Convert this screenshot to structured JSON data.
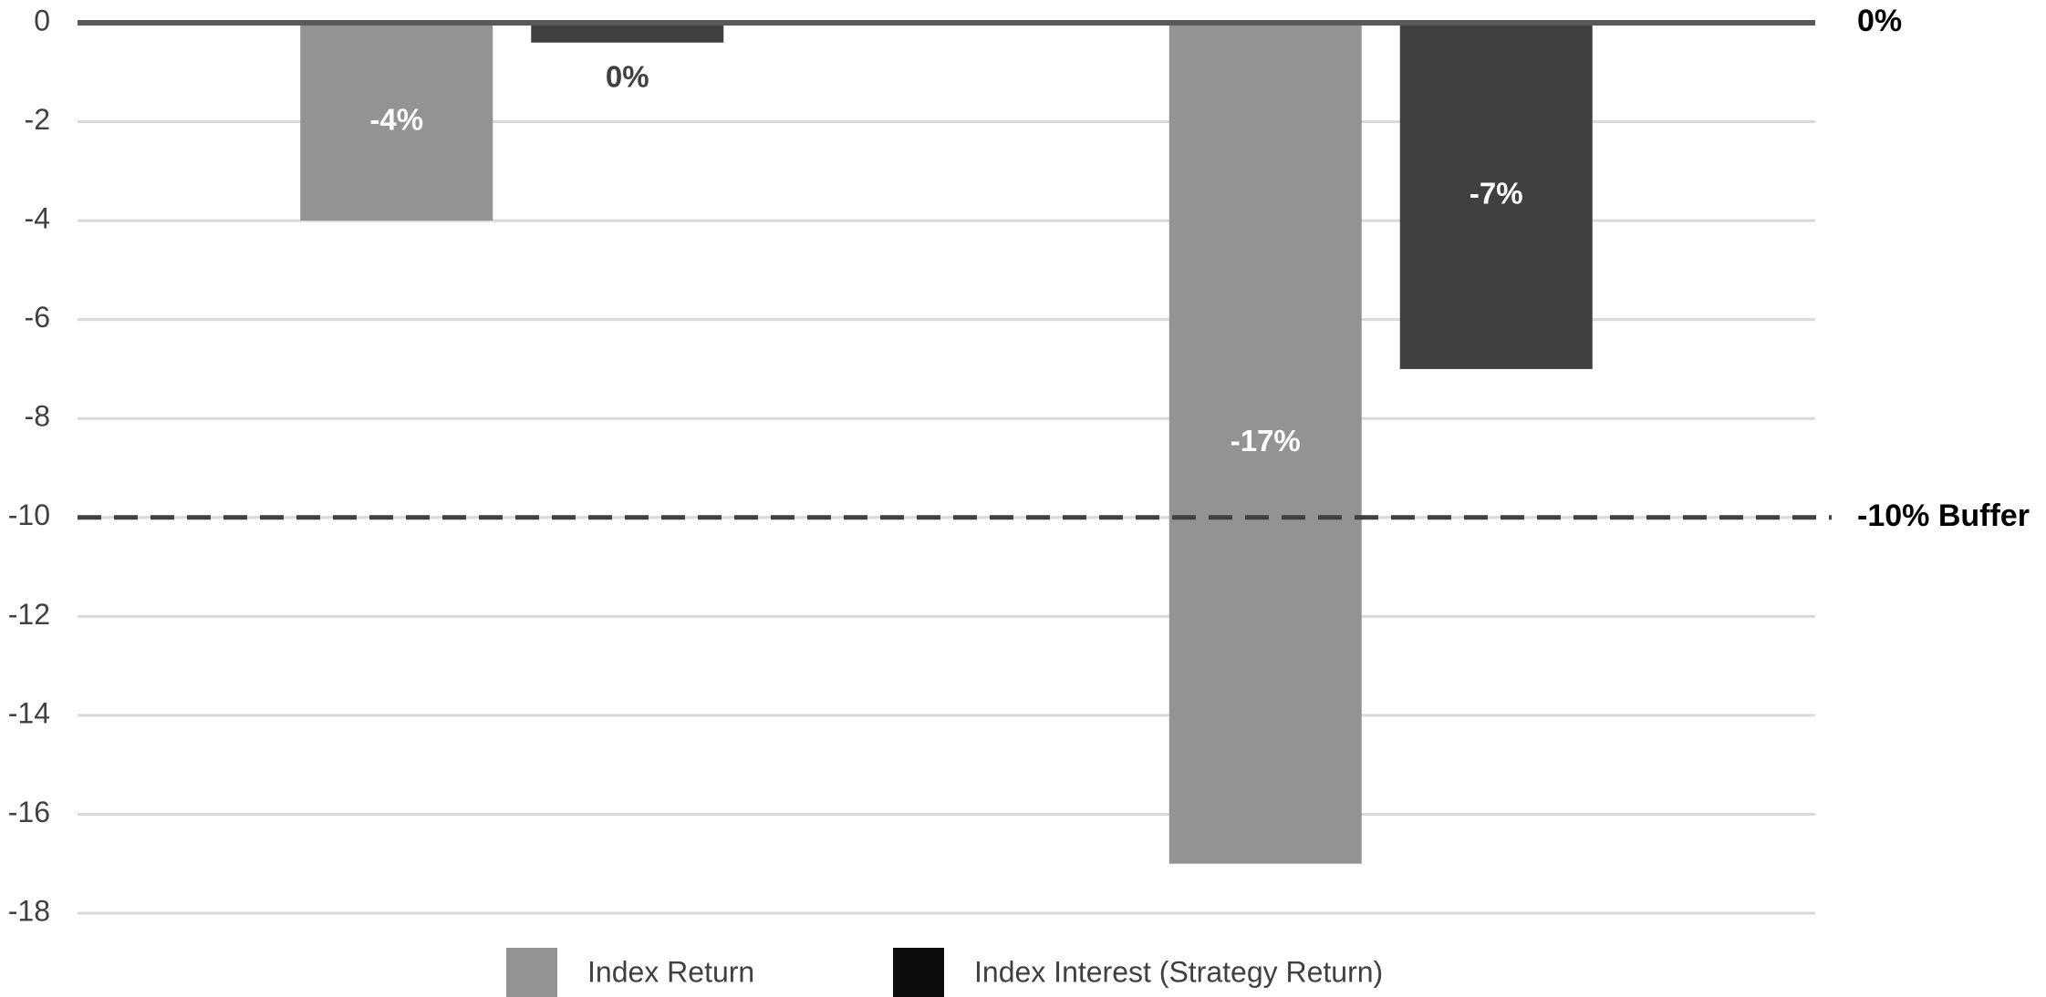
{
  "chart_data": {
    "type": "bar",
    "categories": [
      null,
      null
    ],
    "series": [
      {
        "name": "Index Return",
        "color": "#939393",
        "values": [
          -4,
          -17
        ],
        "value_labels": [
          "-4%",
          "-17%"
        ]
      },
      {
        "name": "Index Interest (Strategy Return)",
        "color": "#404040",
        "legend_color": "#0d0d0d",
        "values": [
          -0.4,
          -7
        ],
        "value_labels": [
          "0%",
          "-7%"
        ]
      }
    ],
    "ylim": [
      -18,
      0
    ],
    "yticks": [
      0,
      -2,
      -4,
      -6,
      -8,
      -10,
      -12,
      -14,
      -16,
      -18
    ],
    "grid": true,
    "reference_lines": [
      {
        "value": 0,
        "label": "0%",
        "style": "solid"
      },
      {
        "value": -10,
        "label": "-10% Buffer",
        "style": "dashed"
      }
    ],
    "legend": "bottom"
  }
}
